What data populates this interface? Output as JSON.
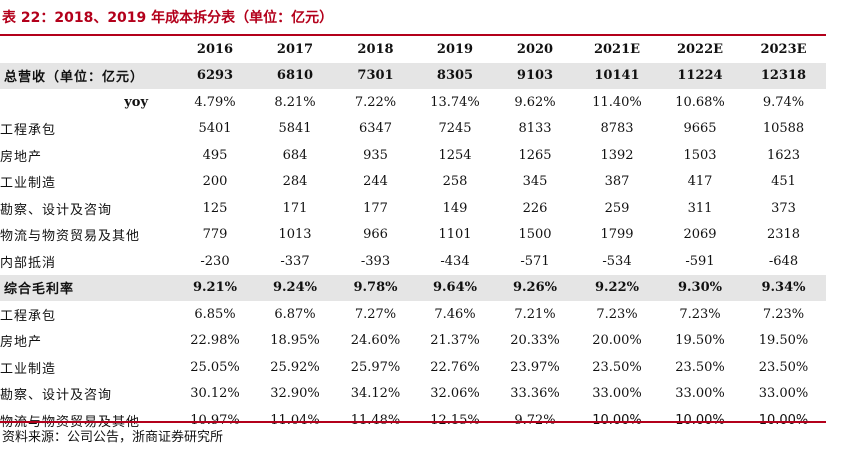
{
  "title": "表 22：2018、2019 年成本拆分表（单位：亿元）",
  "columns": [
    "2016",
    "2017",
    "2018",
    "2019",
    "2020",
    "2021E",
    "2022E",
    "2023E"
  ],
  "rows": [
    {
      "label": "总营收（单位：亿元）",
      "kind": "hl",
      "values": [
        "6293",
        "6810",
        "7301",
        "8305",
        "9103",
        "10141",
        "11224",
        "12318"
      ]
    },
    {
      "label": "yoy",
      "kind": "yoy",
      "values": [
        "4.79%",
        "8.21%",
        "7.22%",
        "13.74%",
        "9.62%",
        "11.40%",
        "10.68%",
        "9.74%"
      ]
    },
    {
      "label": "工程承包",
      "kind": "item",
      "values": [
        "5401",
        "5841",
        "6347",
        "7245",
        "8133",
        "8783",
        "9665",
        "10588"
      ]
    },
    {
      "label": "房地产",
      "kind": "item",
      "values": [
        "495",
        "684",
        "935",
        "1254",
        "1265",
        "1392",
        "1503",
        "1623"
      ]
    },
    {
      "label": "工业制造",
      "kind": "item",
      "values": [
        "200",
        "284",
        "244",
        "258",
        "345",
        "387",
        "417",
        "451"
      ]
    },
    {
      "label": "勘察、设计及咨询",
      "kind": "item",
      "values": [
        "125",
        "171",
        "177",
        "149",
        "226",
        "259",
        "311",
        "373"
      ]
    },
    {
      "label": "物流与物资贸易及其他",
      "kind": "item",
      "values": [
        "779",
        "1013",
        "966",
        "1101",
        "1500",
        "1799",
        "2069",
        "2318"
      ]
    },
    {
      "label": "内部抵消",
      "kind": "item",
      "values": [
        "-230",
        "-337",
        "-393",
        "-434",
        "-571",
        "-534",
        "-591",
        "-648"
      ]
    },
    {
      "label": "综合毛利率",
      "kind": "hl",
      "values": [
        "9.21%",
        "9.24%",
        "9.78%",
        "9.64%",
        "9.26%",
        "9.22%",
        "9.30%",
        "9.34%"
      ]
    },
    {
      "label": "工程承包",
      "kind": "item",
      "values": [
        "6.85%",
        "6.87%",
        "7.27%",
        "7.46%",
        "7.21%",
        "7.23%",
        "7.23%",
        "7.23%"
      ]
    },
    {
      "label": "房地产",
      "kind": "item",
      "values": [
        "22.98%",
        "18.95%",
        "24.60%",
        "21.37%",
        "20.33%",
        "20.00%",
        "19.50%",
        "19.50%"
      ]
    },
    {
      "label": "工业制造",
      "kind": "item",
      "values": [
        "25.05%",
        "25.92%",
        "25.97%",
        "22.76%",
        "23.97%",
        "23.50%",
        "23.50%",
        "23.50%"
      ]
    },
    {
      "label": "勘察、设计及咨询",
      "kind": "item",
      "values": [
        "30.12%",
        "32.90%",
        "34.12%",
        "32.06%",
        "33.36%",
        "33.00%",
        "33.00%",
        "33.00%"
      ]
    },
    {
      "label": "物流与物资贸易及其他",
      "kind": "item sans",
      "values": [
        "10.97%",
        "11.04%",
        "11.48%",
        "12.15%",
        "9.72%",
        "10.00%",
        "10.00%",
        "10.00%"
      ]
    }
  ],
  "source": "资料来源：公司公告，浙商证券研究所",
  "colors": {
    "accent": "#b3001b",
    "highlight_row": "#e5e5e5"
  }
}
